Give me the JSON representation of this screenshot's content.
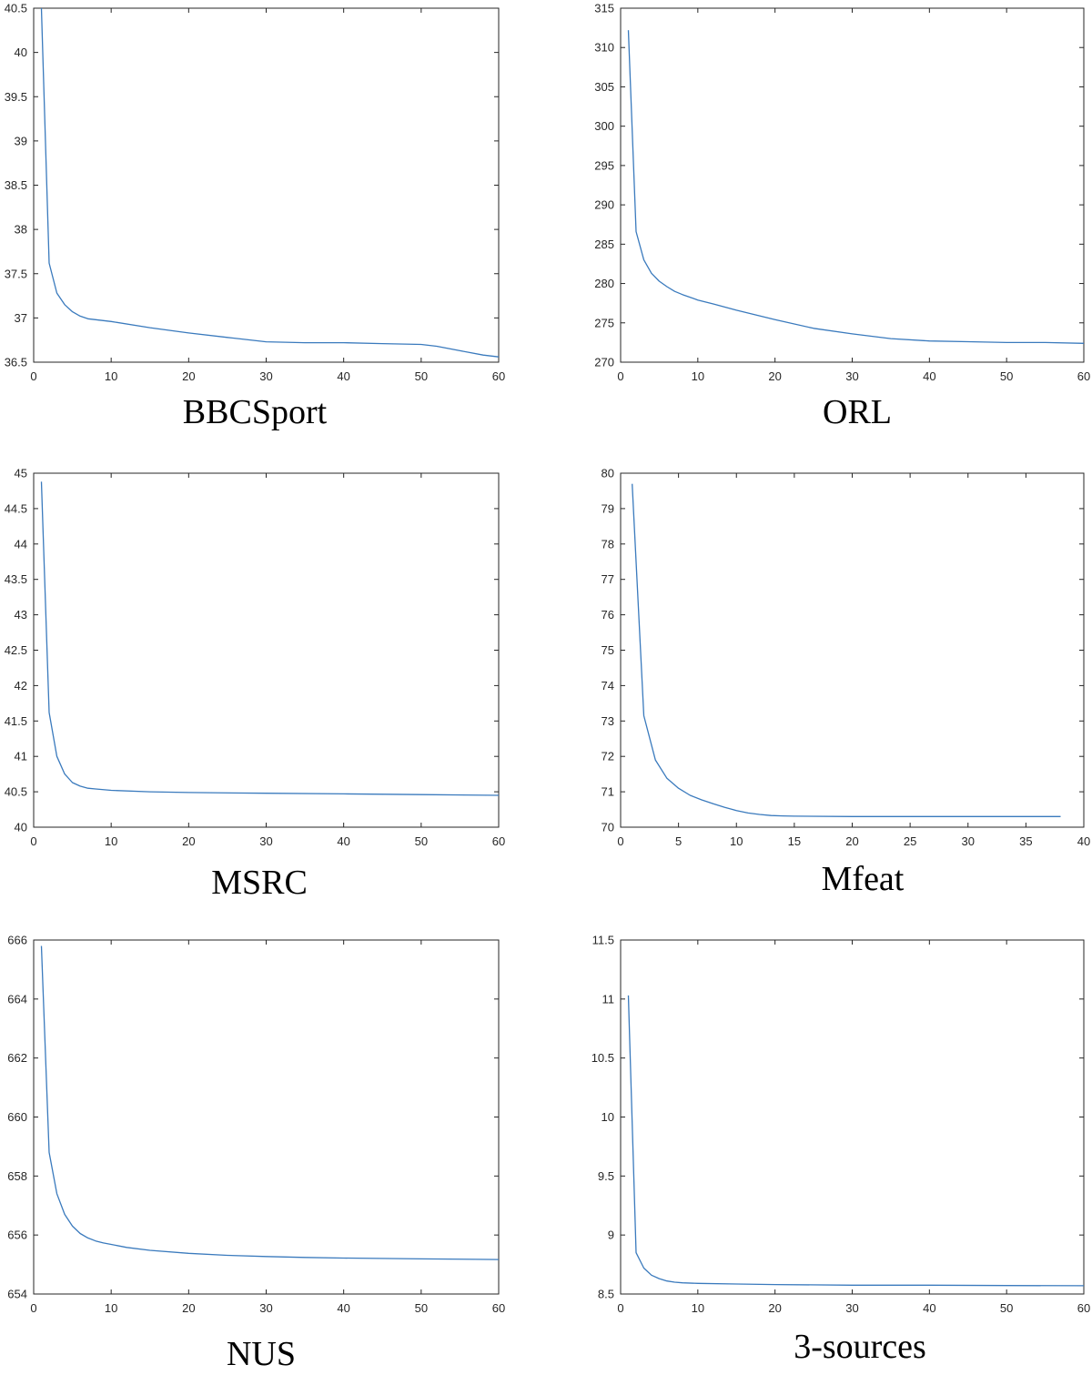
{
  "colors": {
    "line": "#3a7abd",
    "axis": "#262626",
    "background": "#ffffff"
  },
  "chart_data": [
    {
      "type": "line",
      "caption": "BBCSport",
      "xlim": [
        0,
        60
      ],
      "ylim": [
        36.5,
        40.5
      ],
      "xticks": [
        "0",
        "10",
        "20",
        "30",
        "40",
        "50",
        "60"
      ],
      "yticks": [
        "36.5",
        "37",
        "37.5",
        "38",
        "38.5",
        "39",
        "39.5",
        "40",
        "40.5"
      ],
      "grid": false,
      "x": [
        1,
        2,
        3,
        4,
        5,
        6,
        7,
        8,
        10,
        15,
        20,
        25,
        30,
        35,
        40,
        45,
        50,
        52,
        55,
        58,
        60
      ],
      "y": [
        40.5,
        37.62,
        37.28,
        37.15,
        37.07,
        37.02,
        36.99,
        36.98,
        36.96,
        36.89,
        36.83,
        36.78,
        36.73,
        36.72,
        36.72,
        36.71,
        36.7,
        36.68,
        36.63,
        36.58,
        36.56
      ]
    },
    {
      "type": "line",
      "caption": "ORL",
      "xlim": [
        0,
        60
      ],
      "ylim": [
        270,
        315
      ],
      "xticks": [
        "0",
        "10",
        "20",
        "30",
        "40",
        "50",
        "60"
      ],
      "yticks": [
        "270",
        "275",
        "280",
        "285",
        "290",
        "295",
        "300",
        "305",
        "310",
        "315"
      ],
      "grid": false,
      "x": [
        1,
        2,
        3,
        4,
        5,
        6,
        7,
        8,
        10,
        12,
        15,
        20,
        25,
        30,
        35,
        40,
        45,
        50,
        55,
        60
      ],
      "y": [
        312.2,
        286.6,
        283.0,
        281.3,
        280.3,
        279.6,
        279.0,
        278.6,
        277.9,
        277.4,
        276.6,
        275.4,
        274.3,
        273.6,
        273.0,
        272.7,
        272.6,
        272.5,
        272.5,
        272.4
      ]
    },
    {
      "type": "line",
      "caption": "MSRC",
      "xlim": [
        0,
        60
      ],
      "ylim": [
        40,
        45
      ],
      "xticks": [
        "0",
        "10",
        "20",
        "30",
        "40",
        "50",
        "60"
      ],
      "yticks": [
        "40",
        "40.5",
        "41",
        "41.5",
        "42",
        "42.5",
        "43",
        "43.5",
        "44",
        "44.5",
        "45"
      ],
      "grid": false,
      "x": [
        1,
        2,
        3,
        4,
        5,
        6,
        7,
        8,
        10,
        15,
        20,
        30,
        40,
        50,
        60
      ],
      "y": [
        44.88,
        41.62,
        41.0,
        40.75,
        40.63,
        40.58,
        40.55,
        40.54,
        40.52,
        40.5,
        40.49,
        40.48,
        40.47,
        40.46,
        40.45
      ]
    },
    {
      "type": "line",
      "caption": "Mfeat",
      "xlim": [
        0,
        40
      ],
      "ylim": [
        70,
        80
      ],
      "xticks": [
        "0",
        "5",
        "10",
        "15",
        "20",
        "25",
        "30",
        "35",
        "40"
      ],
      "yticks": [
        "70",
        "71",
        "72",
        "73",
        "74",
        "75",
        "76",
        "77",
        "78",
        "79",
        "80"
      ],
      "grid": false,
      "x": [
        1,
        2,
        3,
        4,
        5,
        6,
        7,
        8,
        9,
        10,
        11,
        12,
        13,
        14,
        15,
        20,
        25,
        30,
        35,
        38
      ],
      "y": [
        79.7,
        73.15,
        71.9,
        71.38,
        71.1,
        70.9,
        70.77,
        70.66,
        70.56,
        70.47,
        70.4,
        70.36,
        70.33,
        70.32,
        70.31,
        70.3,
        70.3,
        70.3,
        70.3,
        70.3
      ]
    },
    {
      "type": "line",
      "caption": "NUS",
      "xlim": [
        0,
        60
      ],
      "ylim": [
        654,
        666
      ],
      "xticks": [
        "0",
        "10",
        "20",
        "30",
        "40",
        "50",
        "60"
      ],
      "yticks": [
        "654",
        "656",
        "658",
        "660",
        "662",
        "664",
        "666"
      ],
      "grid": false,
      "x": [
        1,
        2,
        3,
        4,
        5,
        6,
        7,
        8,
        9,
        10,
        12,
        15,
        20,
        25,
        30,
        35,
        40,
        50,
        60
      ],
      "y": [
        665.8,
        658.8,
        657.4,
        656.7,
        656.3,
        656.05,
        655.9,
        655.8,
        655.73,
        655.68,
        655.58,
        655.48,
        655.38,
        655.31,
        655.27,
        655.24,
        655.22,
        655.19,
        655.17
      ]
    },
    {
      "type": "line",
      "caption": "3-sources",
      "xlim": [
        0,
        60
      ],
      "ylim": [
        8.5,
        11.5
      ],
      "xticks": [
        "0",
        "10",
        "20",
        "30",
        "40",
        "50",
        "60"
      ],
      "yticks": [
        "8.5",
        "9",
        "9.5",
        "10",
        "10.5",
        "11",
        "11.5"
      ],
      "grid": false,
      "x": [
        1,
        2,
        3,
        4,
        5,
        6,
        7,
        8,
        10,
        15,
        20,
        30,
        40,
        50,
        60
      ],
      "y": [
        11.03,
        8.85,
        8.72,
        8.66,
        8.63,
        8.61,
        8.6,
        8.595,
        8.59,
        8.585,
        8.58,
        8.575,
        8.575,
        8.572,
        8.57
      ]
    }
  ]
}
